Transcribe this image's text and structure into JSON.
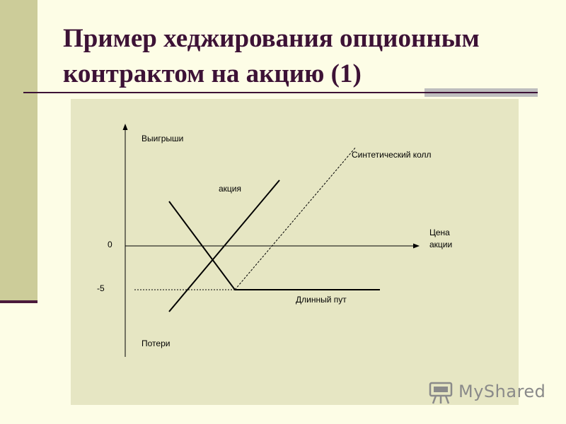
{
  "slide": {
    "title_line1": "Пример хеджирования опционным",
    "title_line2": "контрактом на акцию (1)"
  },
  "diagram": {
    "y_axis_top_label": "Выигрыши",
    "y_axis_bottom_label": "Потери",
    "x_axis_label_line1": "Цена",
    "x_axis_label_line2": "акции",
    "tick_zero": "0",
    "tick_minus5": "-5",
    "stock_label": "акция",
    "put_label": "Длинный пут",
    "call_label": "Синтетический колл"
  },
  "watermark": {
    "text": "MyShared"
  },
  "colors": {
    "background": "#fdfde6",
    "panel": "#e6e6c3",
    "accent_bar": "#cccc99",
    "title": "#3d1236"
  }
}
